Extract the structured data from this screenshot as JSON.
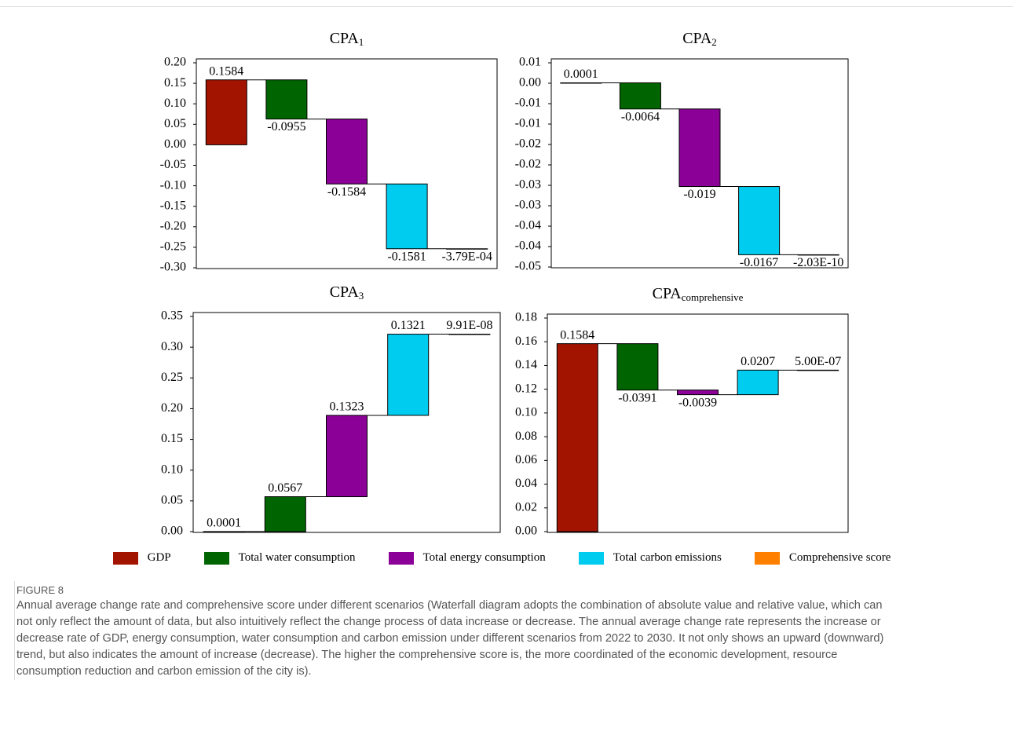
{
  "chart_data": [
    {
      "type": "waterfall",
      "title": "CPA",
      "title_subscript": "1",
      "values": [
        0.1584,
        -0.0955,
        -0.1584,
        -0.1581,
        -0.000379
      ],
      "value_labels": [
        "0.1584",
        "-0.0955",
        "-0.1584",
        "-0.1581",
        "-3.79E-04"
      ],
      "ylim": [
        -0.3,
        0.2
      ],
      "yticks": [
        {
          "value": 0.2,
          "label": "0.20"
        },
        0.15,
        {
          "value": 0.1,
          "label": "0.10"
        },
        0.05,
        {
          "value": 0,
          "label": "0.00"
        },
        -0.05,
        {
          "value": -0.1,
          "label": "-0.10"
        },
        -0.15,
        {
          "value": -0.2,
          "label": "-0.20"
        },
        -0.25,
        {
          "value": -0.3,
          "label": "-0.30"
        }
      ]
    },
    {
      "type": "waterfall",
      "title": "CPA",
      "title_subscript": "2",
      "values": [
        0.0001,
        -0.0064,
        -0.019,
        -0.0167,
        -2.03e-10
      ],
      "value_labels": [
        "0.0001",
        "-0.0064",
        "-0.019",
        "-0.0167",
        "-2.03E-10"
      ],
      "ylim": [
        -0.045,
        0.005
      ],
      "yticks": [
        {
          "value": 0.005,
          "label": "0.01"
        },
        {
          "value": 0,
          "label": "0.00"
        },
        {
          "value": -0.005,
          "label": "-0.01"
        },
        {
          "value": -0.01,
          "label": "-0.01"
        },
        {
          "value": -0.015,
          "label": "-0.02"
        },
        {
          "value": -0.02,
          "label": "-0.02"
        },
        {
          "value": -0.025,
          "label": "-0.03"
        },
        {
          "value": -0.03,
          "label": "-0.03"
        },
        {
          "value": -0.035,
          "label": "-0.04"
        },
        {
          "value": -0.04,
          "label": "-0.04"
        },
        {
          "value": -0.045,
          "label": "-0.05"
        }
      ]
    },
    {
      "type": "waterfall",
      "title": "CPA",
      "title_subscript": "3",
      "values": [
        0.0001,
        0.0567,
        0.1323,
        0.1321,
        9.91e-08
      ],
      "value_labels": [
        "0.0001",
        "0.0567",
        "0.1323",
        "0.1321",
        "9.91E-08"
      ],
      "ylim": [
        0,
        0.35
      ],
      "yticks": [
        {
          "value": 0,
          "label": "0.00"
        },
        0.05,
        {
          "value": 0.1,
          "label": "0.10"
        },
        0.15,
        {
          "value": 0.2,
          "label": "0.20"
        },
        0.25,
        {
          "value": 0.3,
          "label": "0.30"
        },
        0.35
      ]
    },
    {
      "type": "waterfall",
      "title": "CPA",
      "title_subscript": "comprehensive",
      "values": [
        0.1584,
        -0.0391,
        -0.0039,
        0.0207,
        5e-07
      ],
      "value_labels": [
        "0.1584",
        "-0.0391",
        "-0.0039",
        "0.0207",
        "5.00E-07"
      ],
      "ylim": [
        0,
        0.18
      ],
      "yticks": [
        {
          "value": 0,
          "label": "0.00"
        },
        0.02,
        0.04,
        0.06,
        0.08,
        {
          "value": 0.1,
          "label": "0.10"
        },
        0.12,
        0.14,
        0.16,
        0.18
      ]
    }
  ],
  "legend": {
    "items": [
      {
        "name": "GDP",
        "color": "#a31400"
      },
      {
        "name": "Total water consumption",
        "color": "#006400"
      },
      {
        "name": "Total energy consumption",
        "color": "#8b0096"
      },
      {
        "name": "Total carbon emissions",
        "color": "#00ccf0"
      },
      {
        "name": "Comprehensive score",
        "color": "#ff7f00"
      }
    ]
  },
  "figure": {
    "label": "FIGURE 8",
    "caption": "Annual average change rate and comprehensive score under different scenarios (Waterfall diagram adopts the combination of absolute value and relative value, which can not only reflect the amount of data, but also intuitively reflect the change process of data increase or decrease. The annual average change rate represents the increase or decrease rate of GDP, energy consumption, water consumption and carbon emission under different scenarios from 2022 to 2030. It not only shows an upward (downward) trend, but also indicates the amount of increase (decrease). The higher the comprehensive score is, the more coordinated of the economic development, resource consumption reduction and carbon emission of the city is)."
  }
}
